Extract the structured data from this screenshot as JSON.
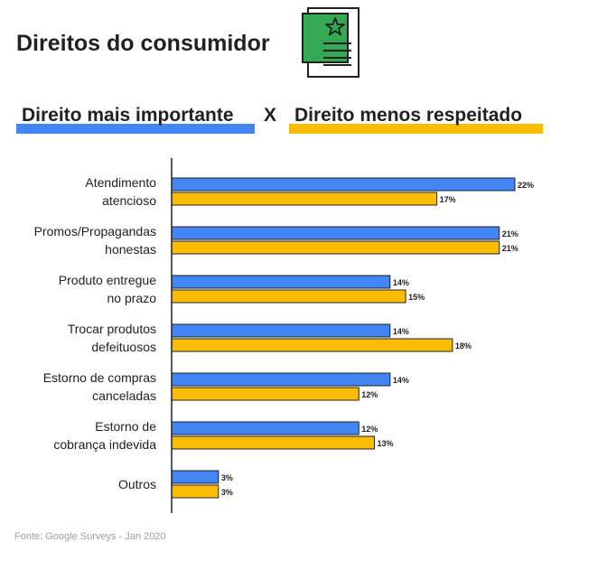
{
  "page_title": "Direitos do consumidor",
  "legend": {
    "separator": "X",
    "items": [
      {
        "label": "Direito mais importante",
        "color": "#4285F4"
      },
      {
        "label": "Direito menos respeitado",
        "color": "#FBBC04"
      }
    ]
  },
  "source": "Fonte: Google Surveys - Jan 2020",
  "icon": {
    "name": "document-star-icon",
    "accent": "#34A853"
  },
  "chart_data": {
    "type": "bar",
    "orientation": "horizontal",
    "categories": [
      [
        "Atendimento",
        "atencioso"
      ],
      [
        "Promos/Propagandas",
        "honestas"
      ],
      [
        "Produto entregue",
        "no prazo"
      ],
      [
        "Trocar produtos",
        "defeituosos"
      ],
      [
        "Estorno de compras",
        "canceladas"
      ],
      [
        "Estorno de",
        "cobrança indevida"
      ],
      [
        "Outros"
      ]
    ],
    "series": [
      {
        "name": "Direito mais importante",
        "color": "#4285F4",
        "values": [
          22,
          21,
          14,
          14,
          14,
          12,
          3
        ]
      },
      {
        "name": "Direito menos respeitado",
        "color": "#FBBC04",
        "values": [
          17,
          21,
          15,
          18,
          12,
          13,
          3
        ]
      }
    ],
    "value_suffix": "%",
    "xlim": [
      0,
      22
    ],
    "grid": false
  }
}
